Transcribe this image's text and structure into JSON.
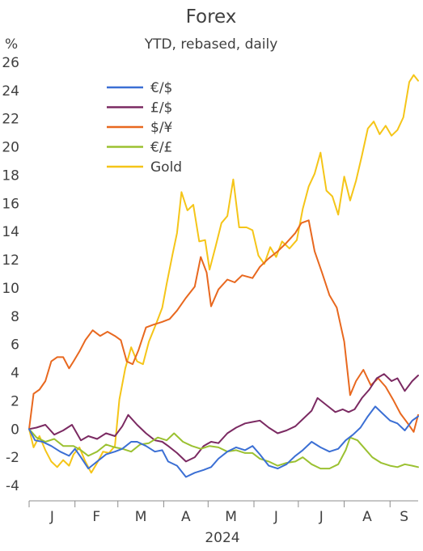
{
  "chart_data": {
    "type": "line",
    "title": "Forex",
    "subtitle": "YTD, rebased, daily",
    "ylabel": "%",
    "xlabel": "2024",
    "ylim": [
      -4,
      26
    ],
    "yticks": [
      -4,
      -2,
      0,
      2,
      4,
      6,
      8,
      10,
      12,
      14,
      16,
      18,
      20,
      22,
      24,
      26
    ],
    "x_range": [
      "2024-01-01",
      "2024-09-20"
    ],
    "x_month_boundaries": [
      "2024-01-01",
      "2024-02-01",
      "2024-03-01",
      "2024-04-01",
      "2024-05-01",
      "2024-06-01",
      "2024-07-01",
      "2024-08-01",
      "2024-09-01"
    ],
    "x_month_labels": [
      "J",
      "F",
      "M",
      "A",
      "M",
      "J",
      "J",
      "A",
      "S"
    ],
    "legend_position": "top-left",
    "grid": false,
    "series": [
      {
        "name": "€/$",
        "color": "#3b6fd4",
        "points": [
          [
            "2024-01-01",
            0
          ],
          [
            "2024-01-05",
            -0.8
          ],
          [
            "2024-01-10",
            -0.9
          ],
          [
            "2024-01-16",
            -1.2
          ],
          [
            "2024-01-22",
            -1.6
          ],
          [
            "2024-01-28",
            -1.9
          ],
          [
            "2024-02-01",
            -1.4
          ],
          [
            "2024-02-05",
            -2.0
          ],
          [
            "2024-02-10",
            -2.8
          ],
          [
            "2024-02-16",
            -2.3
          ],
          [
            "2024-02-22",
            -1.8
          ],
          [
            "2024-02-28",
            -1.6
          ],
          [
            "2024-03-04",
            -1.4
          ],
          [
            "2024-03-10",
            -0.9
          ],
          [
            "2024-03-14",
            -0.9
          ],
          [
            "2024-03-20",
            -1.2
          ],
          [
            "2024-03-26",
            -1.6
          ],
          [
            "2024-03-31",
            -1.5
          ],
          [
            "2024-04-04",
            -2.3
          ],
          [
            "2024-04-10",
            -2.6
          ],
          [
            "2024-04-16",
            -3.4
          ],
          [
            "2024-04-22",
            -3.1
          ],
          [
            "2024-04-28",
            -2.9
          ],
          [
            "2024-05-03",
            -2.7
          ],
          [
            "2024-05-08",
            -2.1
          ],
          [
            "2024-05-14",
            -1.6
          ],
          [
            "2024-05-20",
            -1.3
          ],
          [
            "2024-05-26",
            -1.5
          ],
          [
            "2024-05-31",
            -1.2
          ],
          [
            "2024-06-05",
            -1.8
          ],
          [
            "2024-06-11",
            -2.6
          ],
          [
            "2024-06-17",
            -2.8
          ],
          [
            "2024-06-23",
            -2.5
          ],
          [
            "2024-06-29",
            -1.9
          ],
          [
            "2024-07-04",
            -1.5
          ],
          [
            "2024-07-10",
            -0.9
          ],
          [
            "2024-07-16",
            -1.3
          ],
          [
            "2024-07-22",
            -1.6
          ],
          [
            "2024-07-28",
            -1.4
          ],
          [
            "2024-08-02",
            -0.8
          ],
          [
            "2024-08-07",
            -0.4
          ],
          [
            "2024-08-12",
            0.1
          ],
          [
            "2024-08-17",
            0.9
          ],
          [
            "2024-08-22",
            1.6
          ],
          [
            "2024-08-27",
            1.1
          ],
          [
            "2024-09-01",
            0.6
          ],
          [
            "2024-09-06",
            0.4
          ],
          [
            "2024-09-11",
            -0.1
          ],
          [
            "2024-09-16",
            0.6
          ],
          [
            "2024-09-20",
            0.9
          ]
        ]
      },
      {
        "name": "£/$",
        "color": "#7b2a62",
        "points": [
          [
            "2024-01-01",
            0
          ],
          [
            "2024-01-06",
            0.1
          ],
          [
            "2024-01-12",
            0.3
          ],
          [
            "2024-01-18",
            -0.4
          ],
          [
            "2024-01-24",
            -0.1
          ],
          [
            "2024-01-30",
            0.3
          ],
          [
            "2024-02-05",
            -0.8
          ],
          [
            "2024-02-10",
            -0.5
          ],
          [
            "2024-02-16",
            -0.7
          ],
          [
            "2024-02-22",
            -0.3
          ],
          [
            "2024-02-28",
            -0.5
          ],
          [
            "2024-03-04",
            0.2
          ],
          [
            "2024-03-08",
            1.0
          ],
          [
            "2024-03-14",
            0.3
          ],
          [
            "2024-03-20",
            -0.3
          ],
          [
            "2024-03-26",
            -0.8
          ],
          [
            "2024-03-31",
            -0.9
          ],
          [
            "2024-04-04",
            -1.2
          ],
          [
            "2024-04-10",
            -1.7
          ],
          [
            "2024-04-16",
            -2.3
          ],
          [
            "2024-04-22",
            -2.0
          ],
          [
            "2024-04-28",
            -1.2
          ],
          [
            "2024-05-03",
            -0.9
          ],
          [
            "2024-05-08",
            -1.0
          ],
          [
            "2024-05-14",
            -0.3
          ],
          [
            "2024-05-20",
            0.1
          ],
          [
            "2024-05-26",
            0.4
          ],
          [
            "2024-05-31",
            0.5
          ],
          [
            "2024-06-05",
            0.6
          ],
          [
            "2024-06-11",
            0.1
          ],
          [
            "2024-06-17",
            -0.3
          ],
          [
            "2024-06-23",
            -0.1
          ],
          [
            "2024-06-29",
            0.2
          ],
          [
            "2024-07-04",
            0.7
          ],
          [
            "2024-07-10",
            1.3
          ],
          [
            "2024-07-14",
            2.2
          ],
          [
            "2024-07-20",
            1.7
          ],
          [
            "2024-07-26",
            1.2
          ],
          [
            "2024-07-31",
            1.4
          ],
          [
            "2024-08-04",
            1.2
          ],
          [
            "2024-08-08",
            1.4
          ],
          [
            "2024-08-13",
            2.2
          ],
          [
            "2024-08-18",
            2.8
          ],
          [
            "2024-08-23",
            3.6
          ],
          [
            "2024-08-28",
            3.9
          ],
          [
            "2024-09-02",
            3.4
          ],
          [
            "2024-09-06",
            3.6
          ],
          [
            "2024-09-11",
            2.7
          ],
          [
            "2024-09-16",
            3.4
          ],
          [
            "2024-09-20",
            3.8
          ]
        ]
      },
      {
        "name": "$/¥",
        "color": "#e8681f",
        "points": [
          [
            "2024-01-01",
            0
          ],
          [
            "2024-01-04",
            2.5
          ],
          [
            "2024-01-08",
            2.8
          ],
          [
            "2024-01-12",
            3.4
          ],
          [
            "2024-01-16",
            4.8
          ],
          [
            "2024-01-20",
            5.1
          ],
          [
            "2024-01-24",
            5.1
          ],
          [
            "2024-01-28",
            4.3
          ],
          [
            "2024-01-31",
            4.8
          ],
          [
            "2024-02-04",
            5.5
          ],
          [
            "2024-02-08",
            6.3
          ],
          [
            "2024-02-13",
            7.0
          ],
          [
            "2024-02-18",
            6.6
          ],
          [
            "2024-02-23",
            6.9
          ],
          [
            "2024-02-28",
            6.6
          ],
          [
            "2024-03-03",
            6.3
          ],
          [
            "2024-03-07",
            4.8
          ],
          [
            "2024-03-11",
            4.6
          ],
          [
            "2024-03-15",
            5.6
          ],
          [
            "2024-03-20",
            7.2
          ],
          [
            "2024-03-25",
            7.4
          ],
          [
            "2024-03-31",
            7.6
          ],
          [
            "2024-04-05",
            7.8
          ],
          [
            "2024-04-10",
            8.4
          ],
          [
            "2024-04-16",
            9.3
          ],
          [
            "2024-04-22",
            10.1
          ],
          [
            "2024-04-26",
            12.2
          ],
          [
            "2024-04-30",
            11.1
          ],
          [
            "2024-05-03",
            8.7
          ],
          [
            "2024-05-08",
            9.9
          ],
          [
            "2024-05-14",
            10.6
          ],
          [
            "2024-05-19",
            10.4
          ],
          [
            "2024-05-24",
            10.9
          ],
          [
            "2024-05-31",
            10.7
          ],
          [
            "2024-06-05",
            11.5
          ],
          [
            "2024-06-11",
            12.1
          ],
          [
            "2024-06-17",
            12.6
          ],
          [
            "2024-06-23",
            13.2
          ],
          [
            "2024-06-29",
            13.9
          ],
          [
            "2024-07-03",
            14.6
          ],
          [
            "2024-07-08",
            14.8
          ],
          [
            "2024-07-12",
            12.6
          ],
          [
            "2024-07-17",
            11.1
          ],
          [
            "2024-07-22",
            9.5
          ],
          [
            "2024-07-27",
            8.6
          ],
          [
            "2024-08-01",
            6.2
          ],
          [
            "2024-08-05",
            2.4
          ],
          [
            "2024-08-09",
            3.4
          ],
          [
            "2024-08-14",
            4.2
          ],
          [
            "2024-08-19",
            3.1
          ],
          [
            "2024-08-24",
            3.6
          ],
          [
            "2024-08-29",
            3.0
          ],
          [
            "2024-09-03",
            2.1
          ],
          [
            "2024-09-08",
            1.1
          ],
          [
            "2024-09-13",
            0.4
          ],
          [
            "2024-09-17",
            -0.2
          ],
          [
            "2024-09-20",
            1.0
          ]
        ]
      },
      {
        "name": "€/£",
        "color": "#9bc131",
        "points": [
          [
            "2024-01-01",
            0
          ],
          [
            "2024-01-06",
            -0.6
          ],
          [
            "2024-01-12",
            -0.9
          ],
          [
            "2024-01-18",
            -0.7
          ],
          [
            "2024-01-24",
            -1.2
          ],
          [
            "2024-01-31",
            -1.2
          ],
          [
            "2024-02-05",
            -1.5
          ],
          [
            "2024-02-10",
            -1.9
          ],
          [
            "2024-02-16",
            -1.6
          ],
          [
            "2024-02-22",
            -1.1
          ],
          [
            "2024-02-28",
            -1.3
          ],
          [
            "2024-03-04",
            -1.4
          ],
          [
            "2024-03-10",
            -1.6
          ],
          [
            "2024-03-16",
            -1.1
          ],
          [
            "2024-03-22",
            -1.0
          ],
          [
            "2024-03-28",
            -0.6
          ],
          [
            "2024-04-03",
            -0.8
          ],
          [
            "2024-04-08",
            -0.3
          ],
          [
            "2024-04-14",
            -0.9
          ],
          [
            "2024-04-20",
            -1.2
          ],
          [
            "2024-04-26",
            -1.4
          ],
          [
            "2024-05-02",
            -1.2
          ],
          [
            "2024-05-08",
            -1.3
          ],
          [
            "2024-05-14",
            -1.6
          ],
          [
            "2024-05-20",
            -1.5
          ],
          [
            "2024-05-26",
            -1.7
          ],
          [
            "2024-05-31",
            -1.7
          ],
          [
            "2024-06-05",
            -2.1
          ],
          [
            "2024-06-11",
            -2.3
          ],
          [
            "2024-06-17",
            -2.6
          ],
          [
            "2024-06-23",
            -2.4
          ],
          [
            "2024-06-29",
            -2.3
          ],
          [
            "2024-07-04",
            -2.0
          ],
          [
            "2024-07-10",
            -2.5
          ],
          [
            "2024-07-16",
            -2.8
          ],
          [
            "2024-07-22",
            -2.8
          ],
          [
            "2024-07-28",
            -2.5
          ],
          [
            "2024-08-02",
            -1.5
          ],
          [
            "2024-08-05",
            -0.6
          ],
          [
            "2024-08-10",
            -0.8
          ],
          [
            "2024-08-15",
            -1.4
          ],
          [
            "2024-08-20",
            -2.0
          ],
          [
            "2024-08-26",
            -2.4
          ],
          [
            "2024-09-01",
            -2.6
          ],
          [
            "2024-09-06",
            -2.7
          ],
          [
            "2024-09-11",
            -2.5
          ],
          [
            "2024-09-16",
            -2.6
          ],
          [
            "2024-09-20",
            -2.7
          ]
        ]
      },
      {
        "name": "Gold",
        "color": "#f5c518",
        "points": [
          [
            "2024-01-01",
            0
          ],
          [
            "2024-01-04",
            -1.3
          ],
          [
            "2024-01-08",
            -0.5
          ],
          [
            "2024-01-12",
            -1.5
          ],
          [
            "2024-01-16",
            -2.3
          ],
          [
            "2024-01-20",
            -2.7
          ],
          [
            "2024-01-24",
            -2.2
          ],
          [
            "2024-01-28",
            -2.6
          ],
          [
            "2024-01-31",
            -1.8
          ],
          [
            "2024-02-04",
            -1.3
          ],
          [
            "2024-02-08",
            -2.3
          ],
          [
            "2024-02-12",
            -3.1
          ],
          [
            "2024-02-16",
            -2.4
          ],
          [
            "2024-02-20",
            -1.6
          ],
          [
            "2024-02-24",
            -1.7
          ],
          [
            "2024-02-28",
            -1.2
          ],
          [
            "2024-03-02",
            2.1
          ],
          [
            "2024-03-06",
            4.3
          ],
          [
            "2024-03-10",
            5.8
          ],
          [
            "2024-03-14",
            4.8
          ],
          [
            "2024-03-18",
            4.6
          ],
          [
            "2024-03-22",
            6.2
          ],
          [
            "2024-03-27",
            7.5
          ],
          [
            "2024-03-31",
            8.6
          ],
          [
            "2024-04-03",
            10.3
          ],
          [
            "2024-04-07",
            12.4
          ],
          [
            "2024-04-10",
            13.9
          ],
          [
            "2024-04-13",
            16.8
          ],
          [
            "2024-04-17",
            15.5
          ],
          [
            "2024-04-21",
            15.9
          ],
          [
            "2024-04-25",
            13.3
          ],
          [
            "2024-04-29",
            13.4
          ],
          [
            "2024-05-02",
            11.3
          ],
          [
            "2024-05-06",
            12.9
          ],
          [
            "2024-05-10",
            14.6
          ],
          [
            "2024-05-14",
            15.1
          ],
          [
            "2024-05-18",
            17.7
          ],
          [
            "2024-05-22",
            14.3
          ],
          [
            "2024-05-27",
            14.3
          ],
          [
            "2024-05-31",
            14.1
          ],
          [
            "2024-06-04",
            12.3
          ],
          [
            "2024-06-08",
            11.7
          ],
          [
            "2024-06-12",
            12.9
          ],
          [
            "2024-06-16",
            12.2
          ],
          [
            "2024-06-20",
            13.3
          ],
          [
            "2024-06-25",
            12.8
          ],
          [
            "2024-06-30",
            13.4
          ],
          [
            "2024-07-04",
            15.6
          ],
          [
            "2024-07-08",
            17.2
          ],
          [
            "2024-07-12",
            18.1
          ],
          [
            "2024-07-16",
            19.6
          ],
          [
            "2024-07-20",
            16.9
          ],
          [
            "2024-07-24",
            16.5
          ],
          [
            "2024-07-28",
            15.2
          ],
          [
            "2024-08-01",
            17.9
          ],
          [
            "2024-08-05",
            16.2
          ],
          [
            "2024-08-09",
            17.6
          ],
          [
            "2024-08-13",
            19.4
          ],
          [
            "2024-08-17",
            21.3
          ],
          [
            "2024-08-21",
            21.8
          ],
          [
            "2024-08-25",
            20.9
          ],
          [
            "2024-08-29",
            21.5
          ],
          [
            "2024-09-02",
            20.8
          ],
          [
            "2024-09-06",
            21.2
          ],
          [
            "2024-09-10",
            22.1
          ],
          [
            "2024-09-14",
            24.6
          ],
          [
            "2024-09-17",
            25.1
          ],
          [
            "2024-09-20",
            24.7
          ]
        ]
      }
    ]
  }
}
